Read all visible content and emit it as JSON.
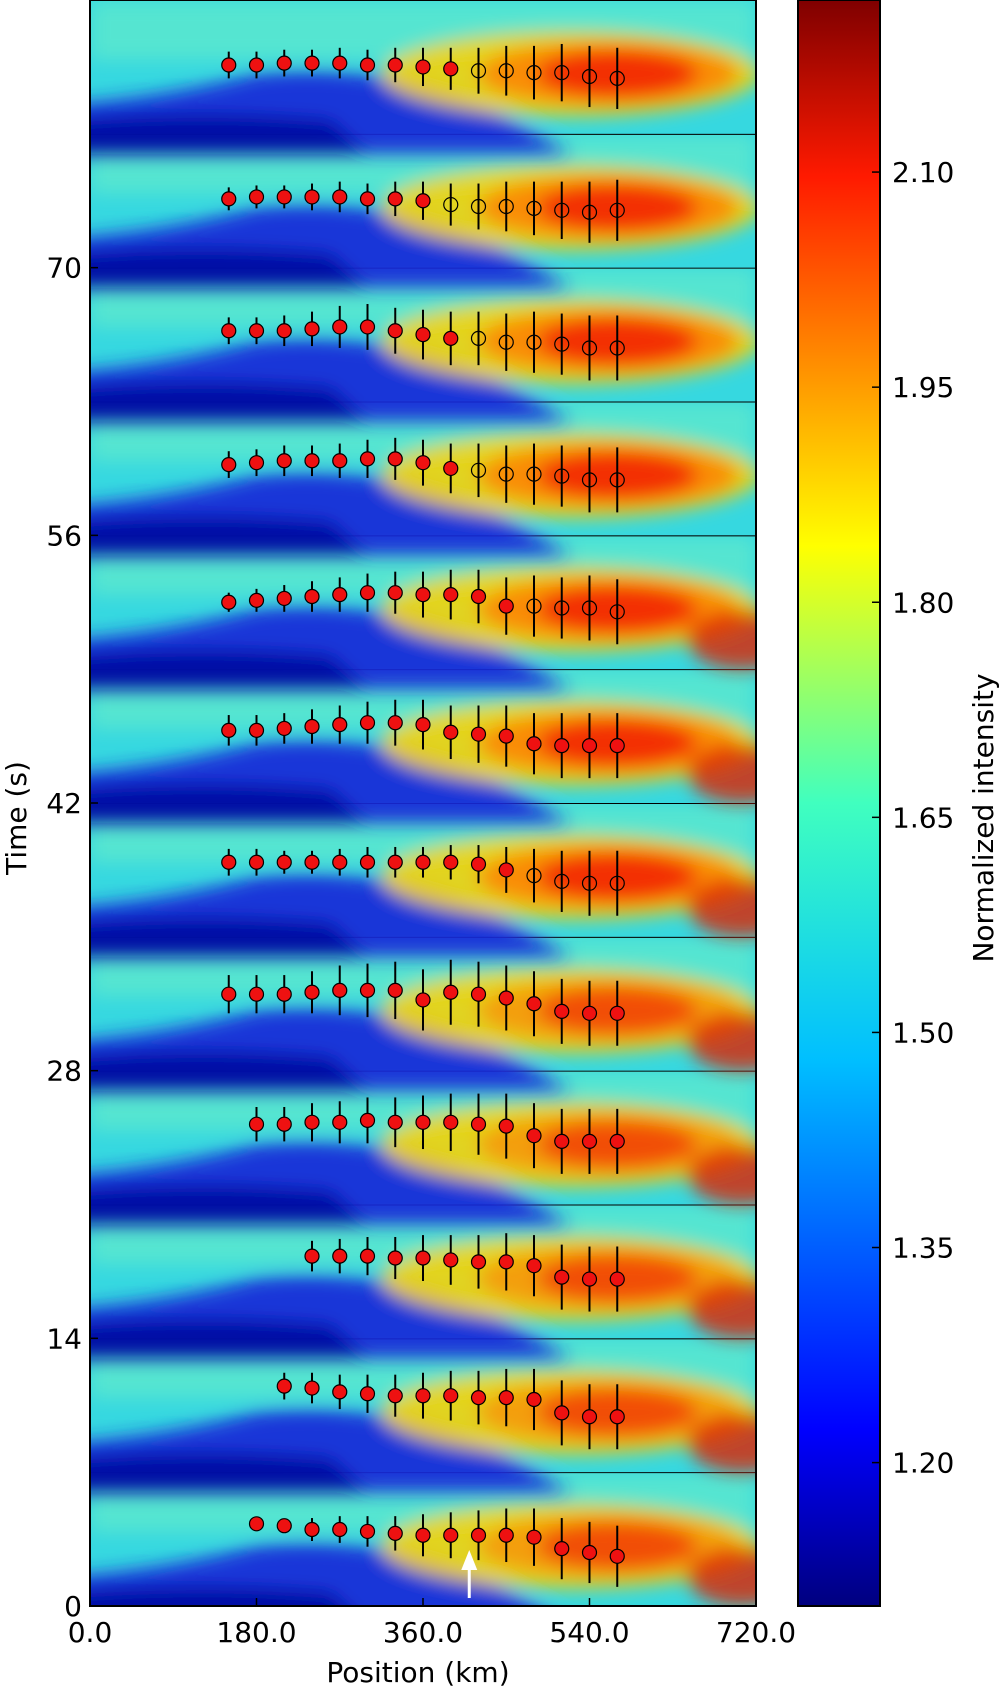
{
  "chart_data": {
    "type": "heatmap",
    "title": "",
    "xlabel": "Position (km)",
    "ylabel": "Time (s)",
    "colorbar_label": "Normalized intensity",
    "xlim": [
      0,
      720
    ],
    "ylim": [
      0,
      84
    ],
    "x_ticks": [
      0,
      180,
      360,
      540,
      720
    ],
    "x_tick_labels": [
      "0.0",
      "180.0",
      "360.0",
      "540.0",
      "720.0"
    ],
    "y_ticks": [
      0,
      14,
      28,
      42,
      56,
      70
    ],
    "y_tick_labels": [
      "0",
      "14",
      "28",
      "42",
      "56",
      "70"
    ],
    "colorbar_range": [
      1.1,
      2.22
    ],
    "colorbar_ticks": [
      1.2,
      1.35,
      1.5,
      1.65,
      1.8,
      1.95,
      2.1
    ],
    "colorbar_tick_labels": [
      "1.20",
      "1.35",
      "1.50",
      "1.65",
      "1.80",
      "1.95",
      "2.10"
    ],
    "n_panels": 12,
    "panel_height_s": 7,
    "positions_km": [
      150,
      180,
      210,
      240,
      270,
      300,
      330,
      360,
      390,
      420,
      450,
      480,
      510,
      540,
      570
    ],
    "panels": [
      {
        "index": 0,
        "t0": 0,
        "x": [
          180,
          210,
          240,
          270,
          300,
          330,
          360,
          390,
          420,
          450,
          480,
          510,
          540,
          570
        ],
        "y": [
          4.3,
          4.2,
          4.0,
          4.0,
          3.9,
          3.8,
          3.7,
          3.7,
          3.7,
          3.7,
          3.6,
          3.0,
          2.8,
          2.6
        ],
        "err": [
          0.2,
          0.2,
          0.6,
          0.7,
          0.8,
          0.9,
          1.1,
          1.2,
          1.3,
          1.4,
          1.5,
          1.6,
          1.6,
          1.6
        ],
        "hollow_from": 99
      },
      {
        "index": 1,
        "t0": 7,
        "x": [
          210,
          240,
          270,
          300,
          330,
          360,
          390,
          420,
          450,
          480,
          510,
          540,
          570
        ],
        "y": [
          4.5,
          4.4,
          4.2,
          4.1,
          4.0,
          4.0,
          4.0,
          3.9,
          3.9,
          3.8,
          3.1,
          2.9,
          2.9
        ],
        "err": [
          0.7,
          0.8,
          0.9,
          1.0,
          1.1,
          1.2,
          1.3,
          1.4,
          1.5,
          1.6,
          1.7,
          1.7,
          1.7
        ],
        "hollow_from": 99
      },
      {
        "index": 2,
        "t0": 14,
        "x": [
          240,
          270,
          300,
          330,
          360,
          390,
          420,
          450,
          480,
          510,
          540,
          570
        ],
        "y": [
          4.3,
          4.3,
          4.3,
          4.2,
          4.2,
          4.1,
          4.0,
          4.0,
          3.8,
          3.2,
          3.1,
          3.1
        ],
        "err": [
          0.8,
          0.9,
          1.0,
          1.1,
          1.2,
          1.3,
          1.4,
          1.5,
          1.6,
          1.7,
          1.7,
          1.7
        ],
        "hollow_from": 99
      },
      {
        "index": 3,
        "t0": 21,
        "x": [
          180,
          210,
          240,
          270,
          300,
          330,
          360,
          390,
          420,
          450,
          480,
          510,
          540,
          570
        ],
        "y": [
          4.2,
          4.2,
          4.3,
          4.3,
          4.4,
          4.3,
          4.3,
          4.3,
          4.2,
          4.1,
          3.6,
          3.3,
          3.3,
          3.3
        ],
        "err": [
          0.9,
          0.9,
          1.0,
          1.1,
          1.2,
          1.3,
          1.4,
          1.5,
          1.6,
          1.7,
          1.7,
          1.7,
          1.7,
          1.7
        ],
        "hollow_from": 99
      },
      {
        "index": 4,
        "t0": 28,
        "x": [
          150,
          180,
          210,
          240,
          270,
          300,
          330,
          360,
          390,
          420,
          450,
          480,
          510,
          540,
          570
        ],
        "y": [
          4.0,
          4.0,
          4.0,
          4.1,
          4.2,
          4.2,
          4.2,
          3.7,
          4.1,
          4.0,
          3.8,
          3.5,
          3.1,
          3.0,
          3.0
        ],
        "err": [
          1.0,
          1.0,
          1.0,
          1.1,
          1.3,
          1.4,
          1.5,
          1.6,
          1.7,
          1.7,
          1.7,
          1.7,
          1.7,
          1.7,
          1.7
        ],
        "hollow_from": 99
      },
      {
        "index": 5,
        "t0": 35,
        "x": [
          150,
          180,
          210,
          240,
          270,
          300,
          330,
          360,
          390,
          420,
          450,
          480,
          510,
          540,
          570
        ],
        "y": [
          3.9,
          3.9,
          3.9,
          3.9,
          3.9,
          3.9,
          3.9,
          3.9,
          3.9,
          3.8,
          3.5,
          3.2,
          2.9,
          2.8,
          2.8
        ],
        "err": [
          0.7,
          0.7,
          0.6,
          0.6,
          0.7,
          0.8,
          0.8,
          0.8,
          0.9,
          1.0,
          1.2,
          1.4,
          1.6,
          1.7,
          1.7
        ],
        "hollow_from": 11
      },
      {
        "index": 6,
        "t0": 42,
        "x": [
          150,
          180,
          210,
          240,
          270,
          300,
          330,
          360,
          390,
          420,
          450,
          480,
          510,
          540,
          570
        ],
        "y": [
          3.8,
          3.8,
          3.9,
          4.0,
          4.1,
          4.2,
          4.2,
          4.1,
          3.7,
          3.6,
          3.5,
          3.1,
          3.0,
          3.0,
          3.0
        ],
        "err": [
          0.8,
          0.8,
          0.8,
          0.9,
          1.0,
          1.1,
          1.2,
          1.3,
          1.4,
          1.5,
          1.6,
          1.6,
          1.7,
          1.7,
          1.7
        ],
        "hollow_from": 99
      },
      {
        "index": 7,
        "t0": 49,
        "x": [
          150,
          180,
          210,
          240,
          270,
          300,
          330,
          360,
          390,
          420,
          450,
          480,
          510,
          540,
          570
        ],
        "y": [
          3.5,
          3.6,
          3.7,
          3.8,
          3.9,
          4.0,
          4.0,
          3.9,
          3.9,
          3.8,
          3.3,
          3.3,
          3.2,
          3.2,
          3.0
        ],
        "err": [
          0.5,
          0.6,
          0.7,
          0.8,
          0.9,
          1.0,
          1.1,
          1.2,
          1.3,
          1.4,
          1.5,
          1.6,
          1.6,
          1.7,
          1.7
        ],
        "hollow_from": 11
      },
      {
        "index": 8,
        "t0": 56,
        "x": [
          150,
          180,
          210,
          240,
          270,
          300,
          330,
          360,
          390,
          420,
          450,
          480,
          510,
          540,
          570
        ],
        "y": [
          3.7,
          3.8,
          3.9,
          3.9,
          3.9,
          4.0,
          4.0,
          3.8,
          3.5,
          3.4,
          3.2,
          3.2,
          3.1,
          2.9,
          2.9
        ],
        "err": [
          0.7,
          0.7,
          0.8,
          0.8,
          0.9,
          1.0,
          1.1,
          1.2,
          1.3,
          1.4,
          1.5,
          1.6,
          1.6,
          1.7,
          1.7
        ],
        "hollow_from": 9
      },
      {
        "index": 9,
        "t0": 63,
        "x": [
          150,
          180,
          210,
          240,
          270,
          300,
          330,
          360,
          390,
          420,
          450,
          480,
          510,
          540,
          570
        ],
        "y": [
          3.7,
          3.7,
          3.7,
          3.8,
          3.9,
          3.9,
          3.7,
          3.5,
          3.3,
          3.3,
          3.1,
          3.1,
          3.0,
          2.8,
          2.8
        ],
        "err": [
          0.7,
          0.7,
          0.8,
          0.9,
          1.1,
          1.2,
          1.2,
          1.3,
          1.4,
          1.4,
          1.5,
          1.6,
          1.6,
          1.7,
          1.7
        ],
        "hollow_from": 9
      },
      {
        "index": 10,
        "t0": 70,
        "x": [
          150,
          180,
          210,
          240,
          270,
          300,
          330,
          360,
          390,
          420,
          450,
          480,
          510,
          540,
          570
        ],
        "y": [
          3.6,
          3.7,
          3.7,
          3.7,
          3.7,
          3.6,
          3.6,
          3.5,
          3.3,
          3.2,
          3.2,
          3.1,
          3.0,
          2.9,
          3.0
        ],
        "err": [
          0.6,
          0.6,
          0.6,
          0.7,
          0.8,
          0.8,
          0.9,
          1.0,
          1.1,
          1.2,
          1.3,
          1.4,
          1.5,
          1.6,
          1.6
        ],
        "hollow_from": 8
      },
      {
        "index": 11,
        "t0": 77,
        "x": [
          150,
          180,
          210,
          240,
          270,
          300,
          330,
          360,
          390,
          420,
          450,
          480,
          510,
          540,
          570
        ],
        "y": [
          3.6,
          3.6,
          3.7,
          3.7,
          3.7,
          3.6,
          3.6,
          3.5,
          3.4,
          3.3,
          3.3,
          3.2,
          3.2,
          3.0,
          2.9
        ],
        "err": [
          0.7,
          0.7,
          0.7,
          0.7,
          0.8,
          0.8,
          0.9,
          1.0,
          1.1,
          1.2,
          1.3,
          1.4,
          1.5,
          1.6,
          1.6
        ],
        "hollow_from": 9
      }
    ],
    "annotation": {
      "type": "arrow",
      "color": "#ffffff",
      "x": 410,
      "panel": 0
    }
  }
}
